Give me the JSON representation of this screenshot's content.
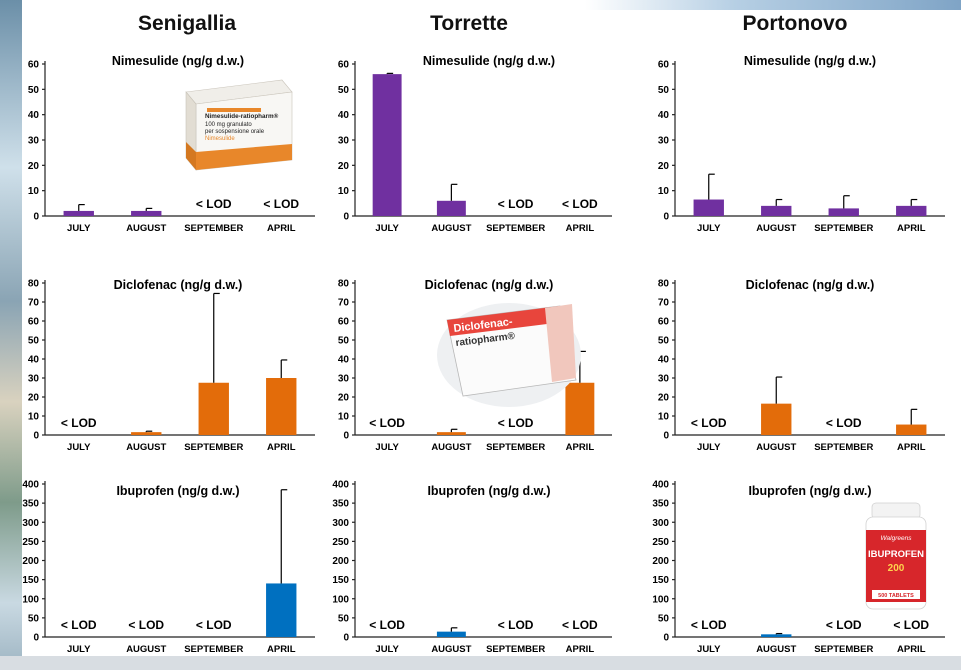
{
  "sites": [
    "Senigallia",
    "Torrette",
    "Portonovo"
  ],
  "chart_data": [
    {
      "type": "bar",
      "site": "Senigallia",
      "title": "Nimesulide (ng/g d.w.)",
      "categories": [
        "JULY",
        "AUGUST",
        "SEPTEMBER",
        "APRIL"
      ],
      "values": [
        2,
        2,
        null,
        null
      ],
      "errors": [
        2.5,
        1,
        null,
        null
      ],
      "labels": [
        null,
        null,
        "< LOD",
        "< LOD"
      ],
      "ylim": [
        0,
        60
      ],
      "yticks": [
        0,
        10,
        20,
        30,
        40,
        50,
        60
      ],
      "color": "#7030A0"
    },
    {
      "type": "bar",
      "site": "Torrette",
      "title": "Nimesulide (ng/g d.w.)",
      "categories": [
        "JULY",
        "AUGUST",
        "SEPTEMBER",
        "APRIL"
      ],
      "values": [
        56,
        6,
        null,
        null
      ],
      "errors": [
        0.3,
        6.5,
        null,
        null
      ],
      "labels": [
        null,
        null,
        "< LOD",
        "< LOD"
      ],
      "ylim": [
        0,
        60
      ],
      "yticks": [
        0,
        10,
        20,
        30,
        40,
        50,
        60
      ],
      "color": "#7030A0"
    },
    {
      "type": "bar",
      "site": "Portonovo",
      "title": "Nimesulide (ng/g d.w.)",
      "categories": [
        "JULY",
        "AUGUST",
        "SEPTEMBER",
        "APRIL"
      ],
      "values": [
        6.5,
        4,
        3,
        4
      ],
      "errors": [
        10,
        2.5,
        5,
        2.5
      ],
      "labels": [
        null,
        null,
        null,
        null
      ],
      "ylim": [
        0,
        60
      ],
      "yticks": [
        0,
        10,
        20,
        30,
        40,
        50,
        60
      ],
      "color": "#7030A0"
    },
    {
      "type": "bar",
      "site": "Senigallia",
      "title": "Diclofenac (ng/g d.w.)",
      "categories": [
        "JULY",
        "AUGUST",
        "SEPTEMBER",
        "APRIL"
      ],
      "values": [
        null,
        1.5,
        27.5,
        30
      ],
      "errors": [
        null,
        0.5,
        47,
        9.5
      ],
      "labels": [
        "< LOD",
        null,
        null,
        null
      ],
      "ylim": [
        0,
        80
      ],
      "yticks": [
        0,
        10,
        20,
        30,
        40,
        50,
        60,
        70,
        80
      ],
      "color": "#E36C0A"
    },
    {
      "type": "bar",
      "site": "Torrette",
      "title": "Diclofenac (ng/g d.w.)",
      "categories": [
        "JULY",
        "AUGUST",
        "SEPTEMBER",
        "APRIL"
      ],
      "values": [
        null,
        1.5,
        null,
        27.5
      ],
      "errors": [
        null,
        1.5,
        null,
        16.5
      ],
      "labels": [
        "< LOD",
        null,
        "< LOD",
        null
      ],
      "ylim": [
        0,
        80
      ],
      "yticks": [
        0,
        10,
        20,
        30,
        40,
        50,
        60,
        70,
        80
      ],
      "color": "#E36C0A"
    },
    {
      "type": "bar",
      "site": "Portonovo",
      "title": "Diclofenac (ng/g d.w.)",
      "categories": [
        "JULY",
        "AUGUST",
        "SEPTEMBER",
        "APRIL"
      ],
      "values": [
        null,
        16.5,
        null,
        5.5
      ],
      "errors": [
        null,
        14,
        null,
        8
      ],
      "labels": [
        "< LOD",
        null,
        "< LOD",
        null
      ],
      "ylim": [
        0,
        80
      ],
      "yticks": [
        0,
        10,
        20,
        30,
        40,
        50,
        60,
        70,
        80
      ],
      "color": "#E36C0A"
    },
    {
      "type": "bar",
      "site": "Senigallia",
      "title": "Ibuprofen (ng/g d.w.)",
      "categories": [
        "JULY",
        "AUGUST",
        "SEPTEMBER",
        "APRIL"
      ],
      "values": [
        null,
        null,
        null,
        140
      ],
      "errors": [
        null,
        null,
        null,
        245
      ],
      "labels": [
        "< LOD",
        "< LOD",
        "< LOD",
        null
      ],
      "ylim": [
        0,
        400
      ],
      "yticks": [
        0,
        50,
        100,
        150,
        200,
        250,
        300,
        350,
        400
      ],
      "color": "#0070C0"
    },
    {
      "type": "bar",
      "site": "Torrette",
      "title": "Ibuprofen (ng/g d.w.)",
      "categories": [
        "JULY",
        "AUGUST",
        "SEPTEMBER",
        "APRIL"
      ],
      "values": [
        null,
        14,
        null,
        null
      ],
      "errors": [
        null,
        10,
        null,
        null
      ],
      "labels": [
        "< LOD",
        null,
        "< LOD",
        "< LOD"
      ],
      "ylim": [
        0,
        400
      ],
      "yticks": [
        0,
        50,
        100,
        150,
        200,
        250,
        300,
        350,
        400
      ],
      "color": "#0070C0"
    },
    {
      "type": "bar",
      "site": "Portonovo",
      "title": "Ibuprofen (ng/g d.w.)",
      "categories": [
        "JULY",
        "AUGUST",
        "SEPTEMBER",
        "APRIL"
      ],
      "values": [
        null,
        7,
        null,
        null
      ],
      "errors": [
        null,
        2,
        null,
        null
      ],
      "labels": [
        "< LOD",
        null,
        "< LOD",
        "< LOD"
      ],
      "ylim": [
        0,
        400
      ],
      "yticks": [
        0,
        50,
        100,
        150,
        200,
        250,
        300,
        350,
        400
      ],
      "color": "#0070C0"
    }
  ],
  "product_images": [
    {
      "name": "nimesulide-box",
      "text": [
        "Nimesulide-ratiopharm®",
        "100 mg granulato",
        "per sospensione orale",
        "Nimesulide"
      ]
    },
    {
      "name": "diclofenac-box",
      "text": [
        "Diclofenac-",
        "ratiopharm®"
      ]
    },
    {
      "name": "ibuprofen-bottle",
      "text": [
        "Walgreens",
        "IBUPROFEN",
        "200",
        "500 TABLETS"
      ]
    }
  ]
}
